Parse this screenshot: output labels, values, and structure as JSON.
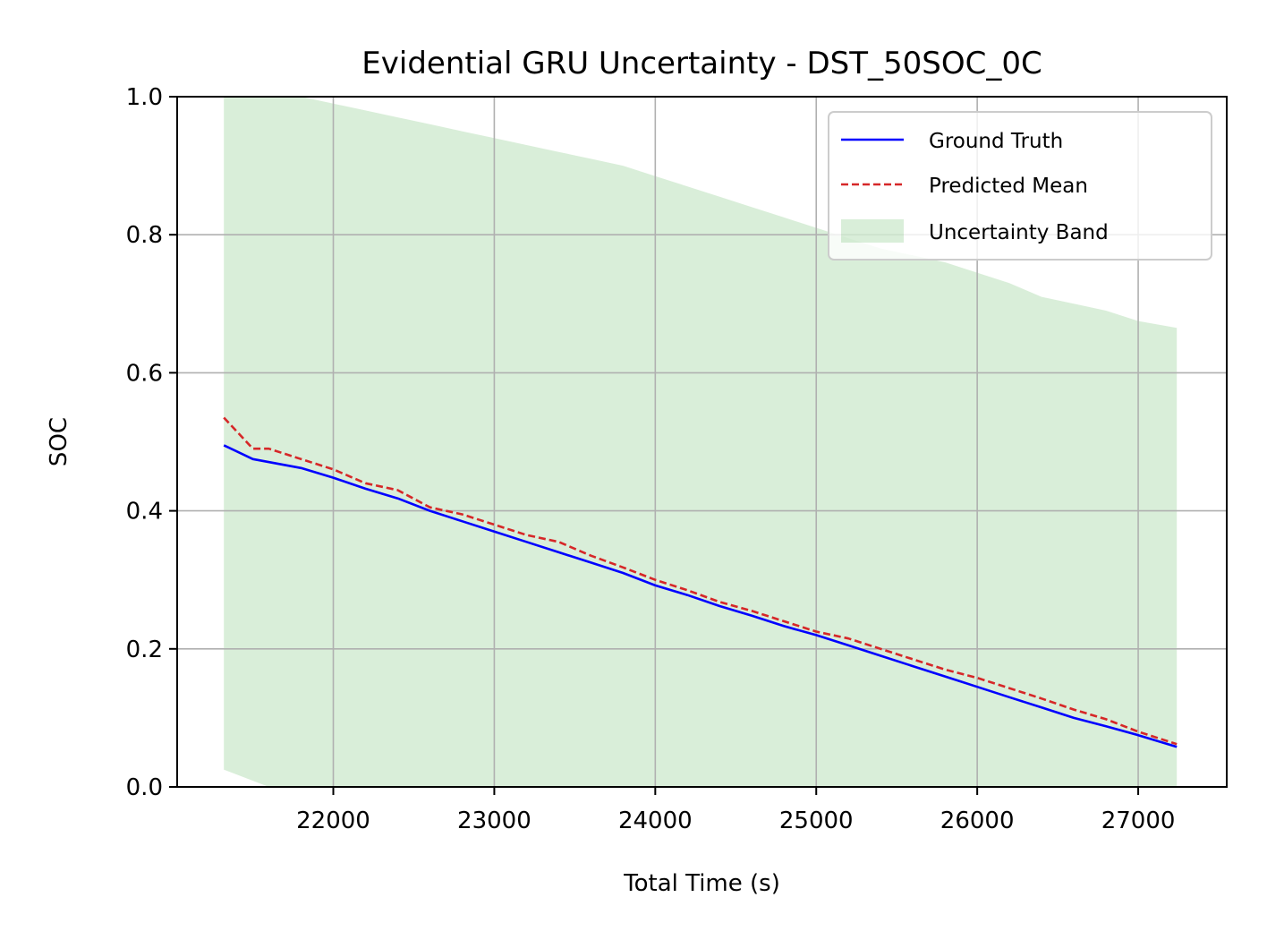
{
  "chart_data": {
    "type": "line",
    "title": "Evidential GRU Uncertainty - DST_50SOC_0C",
    "xlabel": "Total Time (s)",
    "ylabel": "SOC",
    "xlim": [
      21030,
      27550
    ],
    "ylim": [
      0.0,
      1.0
    ],
    "xticks": [
      22000,
      23000,
      24000,
      25000,
      26000,
      27000
    ],
    "yticks": [
      0.0,
      0.2,
      0.4,
      0.6,
      0.8,
      1.0
    ],
    "ytick_labels": [
      "0.0",
      "0.2",
      "0.4",
      "0.6",
      "0.8",
      "1.0"
    ],
    "grid": true,
    "legend_position": "top-right",
    "series": [
      {
        "name": "Ground Truth",
        "color": "#0000ff",
        "style": "solid",
        "x": [
          21320,
          21500,
          21800,
          22000,
          22200,
          22400,
          22600,
          22800,
          23000,
          23200,
          23400,
          23600,
          23800,
          24000,
          24200,
          24400,
          24600,
          24800,
          25000,
          25200,
          25400,
          25600,
          25800,
          26000,
          26200,
          26400,
          26600,
          26800,
          27000,
          27240
        ],
        "y": [
          0.495,
          0.475,
          0.462,
          0.448,
          0.432,
          0.418,
          0.4,
          0.385,
          0.37,
          0.355,
          0.34,
          0.325,
          0.31,
          0.292,
          0.278,
          0.262,
          0.248,
          0.233,
          0.22,
          0.205,
          0.19,
          0.175,
          0.16,
          0.145,
          0.13,
          0.115,
          0.1,
          0.088,
          0.075,
          0.058
        ]
      },
      {
        "name": "Predicted Mean",
        "color": "#d62728",
        "style": "dashed",
        "x": [
          21320,
          21400,
          21500,
          21600,
          21800,
          22000,
          22200,
          22400,
          22600,
          22800,
          23000,
          23200,
          23400,
          23600,
          23800,
          24000,
          24200,
          24400,
          24600,
          24800,
          25000,
          25200,
          25400,
          25600,
          25800,
          26000,
          26200,
          26400,
          26600,
          26800,
          27000,
          27240
        ],
        "y": [
          0.535,
          0.515,
          0.49,
          0.49,
          0.475,
          0.46,
          0.44,
          0.43,
          0.405,
          0.395,
          0.38,
          0.365,
          0.355,
          0.335,
          0.318,
          0.3,
          0.285,
          0.268,
          0.255,
          0.24,
          0.225,
          0.215,
          0.2,
          0.185,
          0.17,
          0.158,
          0.143,
          0.128,
          0.112,
          0.098,
          0.08,
          0.062
        ]
      }
    ],
    "uncertainty_band": {
      "name": "Uncertainty Band",
      "color": "#2ca02c",
      "opacity": 0.18,
      "x": [
        21320,
        21600,
        21800,
        22000,
        22200,
        22400,
        22600,
        22800,
        23000,
        23200,
        23400,
        23600,
        23800,
        24000,
        24200,
        24400,
        24600,
        24800,
        25000,
        25200,
        25400,
        25600,
        25800,
        26000,
        26200,
        26400,
        26600,
        26800,
        27000,
        27240
      ],
      "upper": [
        1.0,
        1.0,
        1.0,
        0.99,
        0.98,
        0.97,
        0.96,
        0.95,
        0.94,
        0.93,
        0.92,
        0.91,
        0.9,
        0.885,
        0.87,
        0.855,
        0.84,
        0.825,
        0.81,
        0.795,
        0.78,
        0.77,
        0.76,
        0.745,
        0.73,
        0.71,
        0.7,
        0.69,
        0.675,
        0.665
      ],
      "lower": [
        0.025,
        0.0,
        0.0,
        0.0,
        0.0,
        0.0,
        0.0,
        0.0,
        0.0,
        0.0,
        0.0,
        0.0,
        0.0,
        0.0,
        0.0,
        0.0,
        0.0,
        0.0,
        0.0,
        0.0,
        0.0,
        0.0,
        0.0,
        0.0,
        0.0,
        0.0,
        0.0,
        0.0,
        0.0,
        0.0
      ]
    }
  }
}
